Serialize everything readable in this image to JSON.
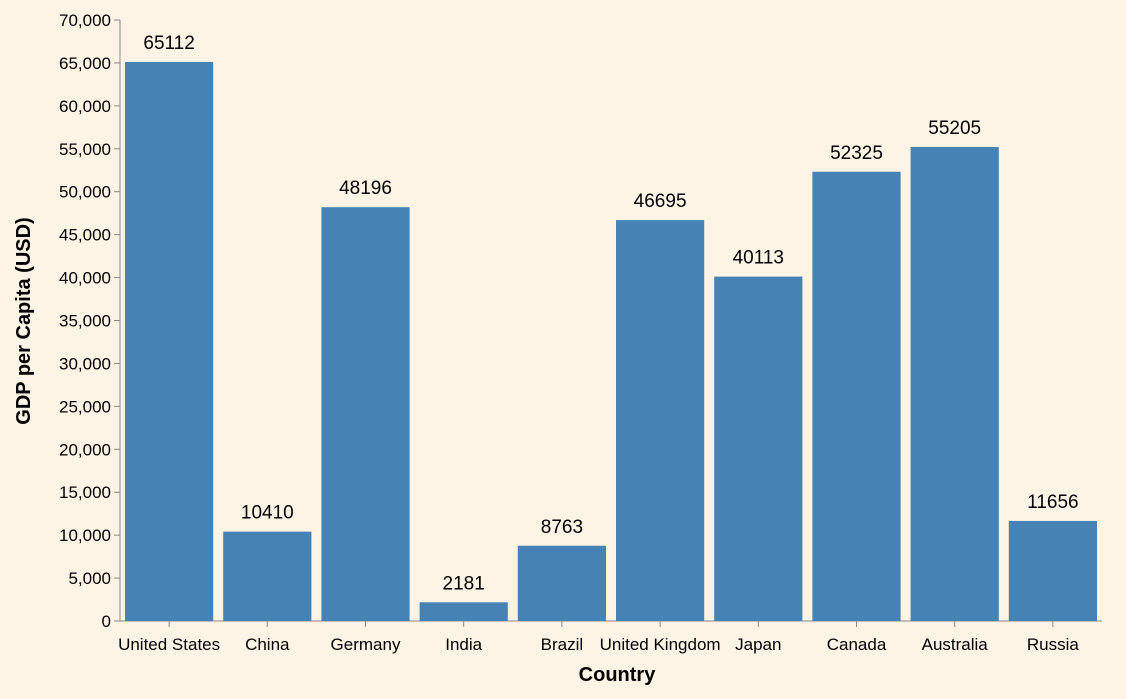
{
  "chart_data": {
    "type": "bar",
    "title": "",
    "xlabel": "Country",
    "ylabel": "GDP per Capita (USD)",
    "categories": [
      "United States",
      "China",
      "Germany",
      "India",
      "Brazil",
      "United Kingdom",
      "Japan",
      "Canada",
      "Australia",
      "Russia"
    ],
    "values": [
      65112,
      10410,
      48196,
      2181,
      8763,
      46695,
      40113,
      52325,
      55205,
      11656
    ],
    "data_labels": [
      "65112",
      "10410",
      "48196",
      "2181",
      "8763",
      "46695",
      "40113",
      "52325",
      "55205",
      "11656"
    ],
    "ylim": [
      0,
      70000
    ],
    "y_ticks": [
      0,
      5000,
      10000,
      15000,
      20000,
      25000,
      30000,
      35000,
      40000,
      45000,
      50000,
      55000,
      60000,
      65000,
      70000
    ],
    "y_tick_labels": [
      "0",
      "5,000",
      "10,000",
      "15,000",
      "20,000",
      "25,000",
      "30,000",
      "35,000",
      "40,000",
      "45,000",
      "50,000",
      "55,000",
      "60,000",
      "65,000",
      "70,000"
    ],
    "grid": false,
    "legend": "none",
    "colors": {
      "bar": "#4682b4",
      "background": "#fdf4e6",
      "axis": "#888888",
      "text": "#000000"
    }
  }
}
